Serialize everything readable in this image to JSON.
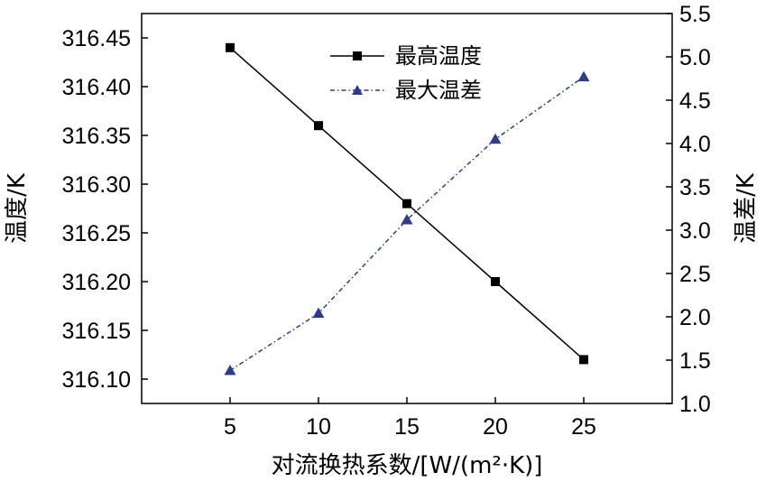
{
  "chart_data": {
    "type": "line",
    "xlabel": "对流换热系数/[W/(m²·K)]",
    "ylabel_left": "温度/K",
    "ylabel_right": "温差/K",
    "x": [
      5,
      10,
      15,
      20,
      25
    ],
    "x_ticks": [
      "5",
      "10",
      "15",
      "20",
      "25"
    ],
    "xlim": [
      0,
      30
    ],
    "y_left_ticks": [
      "316.10",
      "316.15",
      "316.20",
      "316.25",
      "316.30",
      "316.35",
      "316.40",
      "316.45"
    ],
    "y_left_range": [
      316.075,
      316.475
    ],
    "y_right_ticks": [
      "1.0",
      "1.5",
      "2.0",
      "2.5",
      "3.0",
      "3.5",
      "4.0",
      "4.5",
      "5.0",
      "5.5"
    ],
    "y_right_range": [
      1.0,
      5.5
    ],
    "series": [
      {
        "name": "最高温度",
        "axis": "left",
        "values": [
          316.44,
          316.36,
          316.28,
          316.2,
          316.12
        ],
        "color": "#000000",
        "marker": "square",
        "dash": "solid"
      },
      {
        "name": "最大温差",
        "axis": "right",
        "values": [
          1.38,
          2.04,
          3.12,
          4.05,
          4.77
        ],
        "color": "#2e3a8c",
        "marker": "triangle",
        "dash": "dashdot"
      }
    ]
  }
}
